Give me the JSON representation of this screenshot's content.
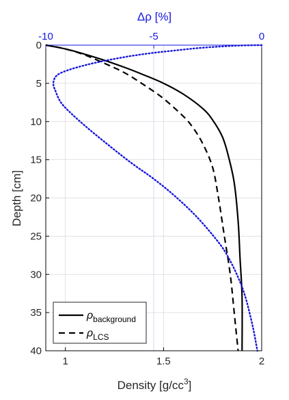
{
  "colors": {
    "black": "#000000",
    "blue": "#1515dc",
    "grid": "#d9d9d9"
  },
  "chart_data": {
    "type": "line",
    "grid": true,
    "x_bottom": {
      "label": "Density [g/cc",
      "label_sup": "3",
      "label_end": "]",
      "range": [
        0.9,
        2.0
      ],
      "ticks": [
        {
          "value": 1.0,
          "label": "1"
        },
        {
          "value": 1.5,
          "label": "1.5"
        },
        {
          "value": 2.0,
          "label": "2"
        }
      ]
    },
    "x_top": {
      "label": "Δρ [%]",
      "range": [
        -10,
        0
      ],
      "ticks": [
        {
          "value": -10,
          "label": "-10"
        },
        {
          "value": -5,
          "label": "-5"
        },
        {
          "value": 0,
          "label": "0"
        }
      ]
    },
    "y": {
      "label": "Depth [cm]",
      "range": [
        0,
        40
      ],
      "reversed": true,
      "ticks": [
        {
          "value": 0,
          "label": "0"
        },
        {
          "value": 5,
          "label": "5"
        },
        {
          "value": 10,
          "label": "10"
        },
        {
          "value": 15,
          "label": "15"
        },
        {
          "value": 20,
          "label": "20"
        },
        {
          "value": 25,
          "label": "25"
        },
        {
          "value": 30,
          "label": "30"
        },
        {
          "value": 35,
          "label": "35"
        },
        {
          "value": 40,
          "label": "40"
        }
      ]
    },
    "legend": {
      "placement": "bottom-left",
      "entries": [
        {
          "symbol": "ρ",
          "sub": "background",
          "series": "background"
        },
        {
          "symbol": "ρ",
          "sub": "LCS",
          "series": "lcs"
        }
      ]
    },
    "series": [
      {
        "id": "background",
        "axis": "bottom",
        "style": "solid",
        "color": "#000000",
        "points": [
          [
            0.9,
            0
          ],
          [
            1.0,
            0.5
          ],
          [
            1.1,
            1.2
          ],
          [
            1.2,
            2.0
          ],
          [
            1.3,
            2.9
          ],
          [
            1.4,
            3.9
          ],
          [
            1.5,
            5.0
          ],
          [
            1.6,
            6.4
          ],
          [
            1.7,
            8.3
          ],
          [
            1.75,
            9.8
          ],
          [
            1.8,
            12.0
          ],
          [
            1.83,
            14.5
          ],
          [
            1.86,
            18.0
          ],
          [
            1.88,
            23.0
          ],
          [
            1.89,
            28.0
          ],
          [
            1.9,
            33.0
          ],
          [
            1.9,
            40.0
          ]
        ]
      },
      {
        "id": "lcs",
        "axis": "bottom",
        "style": "dashed",
        "color": "#000000",
        "points": [
          [
            0.9,
            0
          ],
          [
            1.0,
            0.5
          ],
          [
            1.1,
            1.3
          ],
          [
            1.2,
            2.4
          ],
          [
            1.3,
            3.6
          ],
          [
            1.4,
            5.2
          ],
          [
            1.5,
            7.0
          ],
          [
            1.6,
            9.3
          ],
          [
            1.65,
            10.8
          ],
          [
            1.7,
            12.9
          ],
          [
            1.75,
            16.0
          ],
          [
            1.78,
            20.0
          ],
          [
            1.81,
            25.0
          ],
          [
            1.84,
            30.0
          ],
          [
            1.86,
            35.0
          ],
          [
            1.88,
            40.0
          ]
        ]
      },
      {
        "id": "delta",
        "axis": "top",
        "style": "dotted",
        "color": "#1515dc",
        "points": [
          [
            0,
            0
          ],
          [
            -1,
            0.05
          ],
          [
            -2,
            0.2
          ],
          [
            -3,
            0.4
          ],
          [
            -4,
            0.7
          ],
          [
            -5,
            1.0
          ],
          [
            -6,
            1.4
          ],
          [
            -7,
            1.9
          ],
          [
            -8,
            2.5
          ],
          [
            -9,
            3.3
          ],
          [
            -9.5,
            4.0
          ],
          [
            -9.65,
            5.0
          ],
          [
            -9.55,
            6.0
          ],
          [
            -9.3,
            7.5
          ],
          [
            -8.8,
            9.0
          ],
          [
            -8.0,
            11.0
          ],
          [
            -7.0,
            13.3
          ],
          [
            -6.0,
            15.5
          ],
          [
            -5.0,
            17.5
          ],
          [
            -4.0,
            19.8
          ],
          [
            -3.0,
            22.5
          ],
          [
            -2.0,
            25.8
          ],
          [
            -1.5,
            28.0
          ],
          [
            -1.0,
            31.0
          ],
          [
            -0.7,
            33.5
          ],
          [
            -0.4,
            37.0
          ],
          [
            -0.2,
            40.0
          ]
        ]
      }
    ]
  }
}
